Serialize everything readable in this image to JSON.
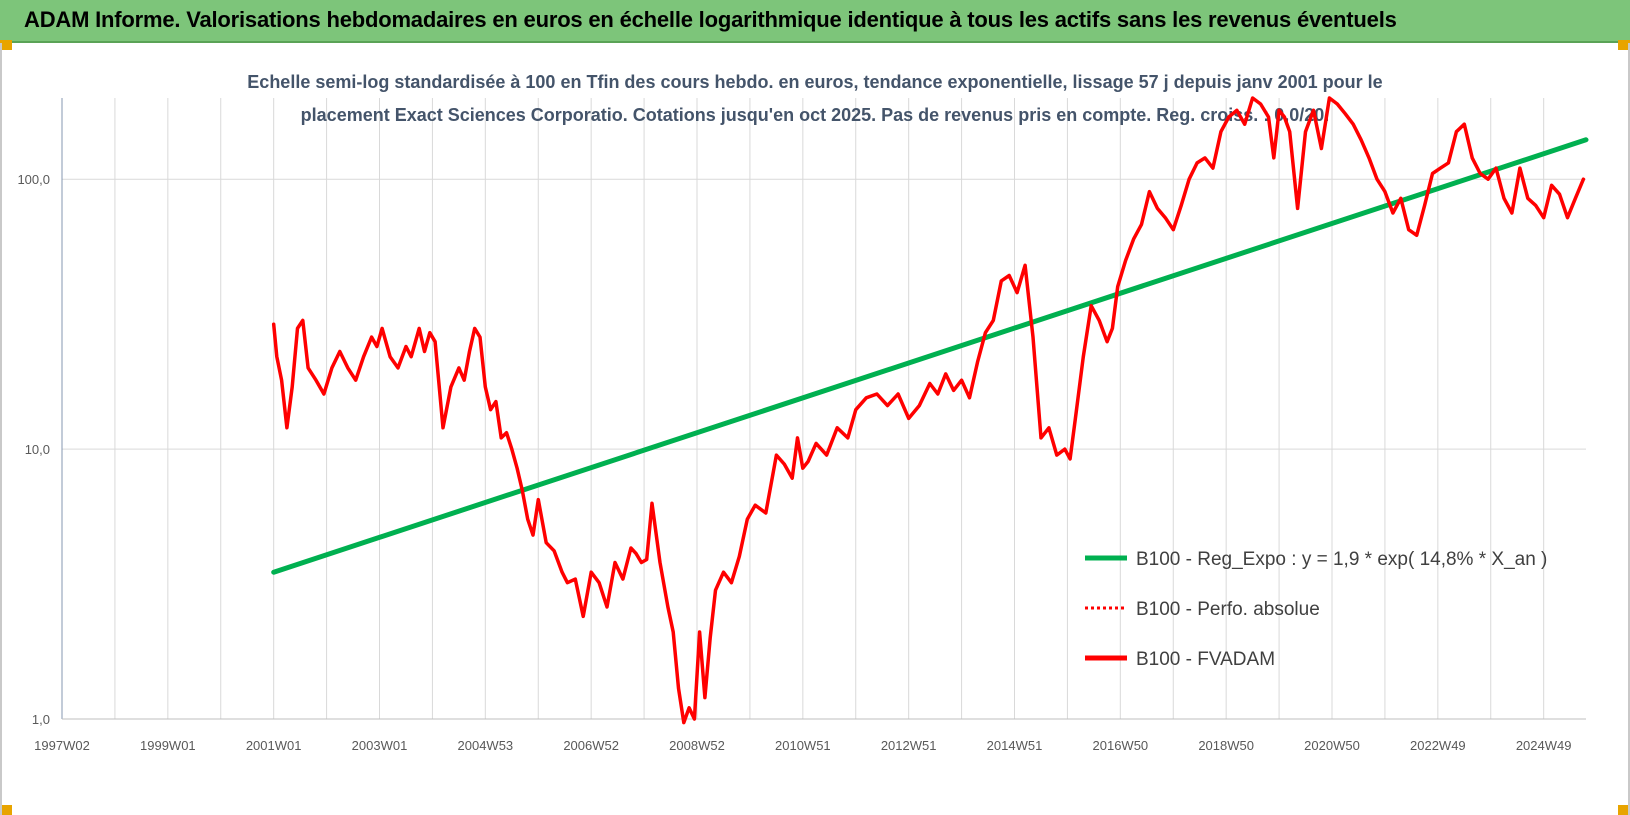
{
  "banner": {
    "title": "ADAM Informe. Valorisations hebdomadaires en euros en échelle logarithmique identique à tous les actifs sans les revenus éventuels"
  },
  "colors": {
    "banner_bg": "#7dc57a",
    "accent_corner": "#e8a400",
    "regression": "#00b050",
    "fvadam": "#ff0000",
    "perfo": "#ff0000",
    "grid": "#d9d9d9",
    "axis": "#8497b0"
  },
  "chart_data": {
    "type": "line",
    "title_lines": [
      "Echelle semi-log standardisée à 100 en Tfin des cours hebdo. en euros, tendance exponentielle, lissage 57 j depuis janv 2001 pour le",
      "placement Exact Sciences Corporatio. Cotations jusqu'en oct 2025.  Pas de revenus pris en compte. Reg. croiss. : 0,0/20."
    ],
    "y_scale": "log",
    "ylim": [
      1,
      200
    ],
    "xlim": [
      1997.0,
      2025.8
    ],
    "y_ticks": [
      {
        "value": 1,
        "label": "1,0"
      },
      {
        "value": 10,
        "label": "10,0"
      },
      {
        "value": 100,
        "label": "100,0"
      }
    ],
    "x_ticks": [
      {
        "value": 1997.0,
        "label": "1997W02"
      },
      {
        "value": 1999.0,
        "label": "1999W01"
      },
      {
        "value": 2001.0,
        "label": "2001W01"
      },
      {
        "value": 2003.0,
        "label": "2003W01"
      },
      {
        "value": 2005.0,
        "label": "2004W53"
      },
      {
        "value": 2007.0,
        "label": "2006W52"
      },
      {
        "value": 2009.0,
        "label": "2008W52"
      },
      {
        "value": 2011.0,
        "label": "2010W51"
      },
      {
        "value": 2013.0,
        "label": "2012W51"
      },
      {
        "value": 2015.0,
        "label": "2014W51"
      },
      {
        "value": 2017.0,
        "label": "2016W50"
      },
      {
        "value": 2019.0,
        "label": "2018W50"
      },
      {
        "value": 2021.0,
        "label": "2020W50"
      },
      {
        "value": 2023.0,
        "label": "2022W49"
      },
      {
        "value": 2025.0,
        "label": "2024W49"
      }
    ],
    "grid": true,
    "legend_position": "right",
    "series": [
      {
        "name": "B100 - Reg_Expo : y = 1,9 * exp( 14,8% *  X_an )",
        "color": "#00b050",
        "style": "solid",
        "x": [
          2001.0,
          2025.8
        ],
        "y": [
          3.5,
          140
        ]
      },
      {
        "name": "B100 - Perfo. absolue",
        "color": "#ff0000",
        "style": "dotted",
        "x": [],
        "y": []
      },
      {
        "name": "B100 - FVADAM",
        "color": "#ff0000",
        "style": "solid",
        "x": [
          2001.0,
          2001.06,
          2001.15,
          2001.25,
          2001.35,
          2001.45,
          2001.55,
          2001.65,
          2001.8,
          2001.95,
          2002.1,
          2002.25,
          2002.4,
          2002.55,
          2002.7,
          2002.85,
          2002.95,
          2003.05,
          2003.2,
          2003.35,
          2003.5,
          2003.6,
          2003.75,
          2003.85,
          2003.95,
          2004.05,
          2004.2,
          2004.35,
          2004.5,
          2004.6,
          2004.7,
          2004.8,
          2004.9,
          2005.0,
          2005.1,
          2005.2,
          2005.3,
          2005.4,
          2005.5,
          2005.6,
          2005.7,
          2005.8,
          2005.9,
          2006.0,
          2006.15,
          2006.3,
          2006.45,
          2006.55,
          2006.7,
          2006.85,
          2007.0,
          2007.15,
          2007.3,
          2007.45,
          2007.6,
          2007.75,
          2007.85,
          2007.95,
          2008.05,
          2008.15,
          2008.3,
          2008.45,
          2008.55,
          2008.65,
          2008.75,
          2008.85,
          2008.95,
          2009.05,
          2009.15,
          2009.25,
          2009.35,
          2009.5,
          2009.65,
          2009.8,
          2009.95,
          2010.1,
          2010.3,
          2010.5,
          2010.65,
          2010.8,
          2010.9,
          2011.0,
          2011.1,
          2011.25,
          2011.45,
          2011.65,
          2011.85,
          2012.0,
          2012.2,
          2012.4,
          2012.6,
          2012.8,
          2013.0,
          2013.2,
          2013.4,
          2013.55,
          2013.7,
          2013.85,
          2014.0,
          2014.15,
          2014.3,
          2014.45,
          2014.6,
          2014.75,
          2014.9,
          2015.05,
          2015.2,
          2015.35,
          2015.5,
          2015.65,
          2015.8,
          2015.95,
          2016.05,
          2016.15,
          2016.3,
          2016.45,
          2016.6,
          2016.75,
          2016.85,
          2016.95,
          2017.1,
          2017.25,
          2017.4,
          2017.55,
          2017.7,
          2017.85,
          2018.0,
          2018.15,
          2018.3,
          2018.45,
          2018.6,
          2018.75,
          2018.9,
          2019.05,
          2019.2,
          2019.35,
          2019.5,
          2019.65,
          2019.8,
          2019.9,
          2020.0,
          2020.1,
          2020.2,
          2020.35,
          2020.5,
          2020.65,
          2020.8,
          2020.95,
          2021.1,
          2021.25,
          2021.4,
          2021.55,
          2021.7,
          2021.85,
          2022.0,
          2022.15,
          2022.3,
          2022.45,
          2022.6,
          2022.75,
          2022.9,
          2023.05,
          2023.2,
          2023.35,
          2023.5,
          2023.65,
          2023.8,
          2023.95,
          2024.1,
          2024.25,
          2024.4,
          2024.55,
          2024.7,
          2024.85,
          2025.0,
          2025.15,
          2025.3,
          2025.45,
          2025.6,
          2025.75
        ],
        "y": [
          29,
          22,
          18,
          12,
          17,
          28,
          30,
          20,
          18,
          16,
          20,
          23,
          20,
          18,
          22,
          26,
          24,
          28,
          22,
          20,
          24,
          22,
          28,
          23,
          27,
          25,
          12,
          17,
          20,
          18,
          23,
          28,
          26,
          17,
          14,
          15,
          11,
          11.5,
          10,
          8.5,
          7,
          5.5,
          4.8,
          6.5,
          4.5,
          4.2,
          3.5,
          3.2,
          3.3,
          2.4,
          3.5,
          3.2,
          2.6,
          3.8,
          3.3,
          4.3,
          4.1,
          3.8,
          3.9,
          6.3,
          3.8,
          2.6,
          2.1,
          1.3,
          0.97,
          1.1,
          1.0,
          2.1,
          1.2,
          2.0,
          3.0,
          3.5,
          3.2,
          4.0,
          5.5,
          6.2,
          5.8,
          9.5,
          8.8,
          7.8,
          11.0,
          8.5,
          9.0,
          10.5,
          9.5,
          12.0,
          11.0,
          14.0,
          15.5,
          16.0,
          14.5,
          16.0,
          13.0,
          14.5,
          17.5,
          16.0,
          19.0,
          16.5,
          18.0,
          15.5,
          21.0,
          27.0,
          30.0,
          42.0,
          44.0,
          38.0,
          48.0,
          26.0,
          11.0,
          12.0,
          9.5,
          10.0,
          9.2,
          13.0,
          22.0,
          34.0,
          30.0,
          25.0,
          28.0,
          40.0,
          50.0,
          60.0,
          68.0,
          90.0,
          78.0,
          72.0,
          65.0,
          80.0,
          100.0,
          115.0,
          120.0,
          110.0,
          150.0,
          170.0,
          180.0,
          160.0,
          200.0,
          190.0,
          170.0,
          120.0,
          180.0,
          170.0,
          150.0,
          78.0,
          150.0,
          180.0,
          130.0,
          200.0,
          190.0,
          175.0,
          160.0,
          140.0,
          120.0,
          100.0,
          90.0,
          75.0,
          85.0,
          65.0,
          62.0,
          80.0,
          105.0,
          110.0,
          115.0,
          150.0,
          160.0,
          120.0,
          105.0,
          100.0,
          110.0,
          85.0,
          75.0,
          110.0,
          85.0,
          80.0,
          72.0,
          95.0,
          88.0,
          72.0,
          85.0,
          100.0
        ]
      }
    ]
  }
}
